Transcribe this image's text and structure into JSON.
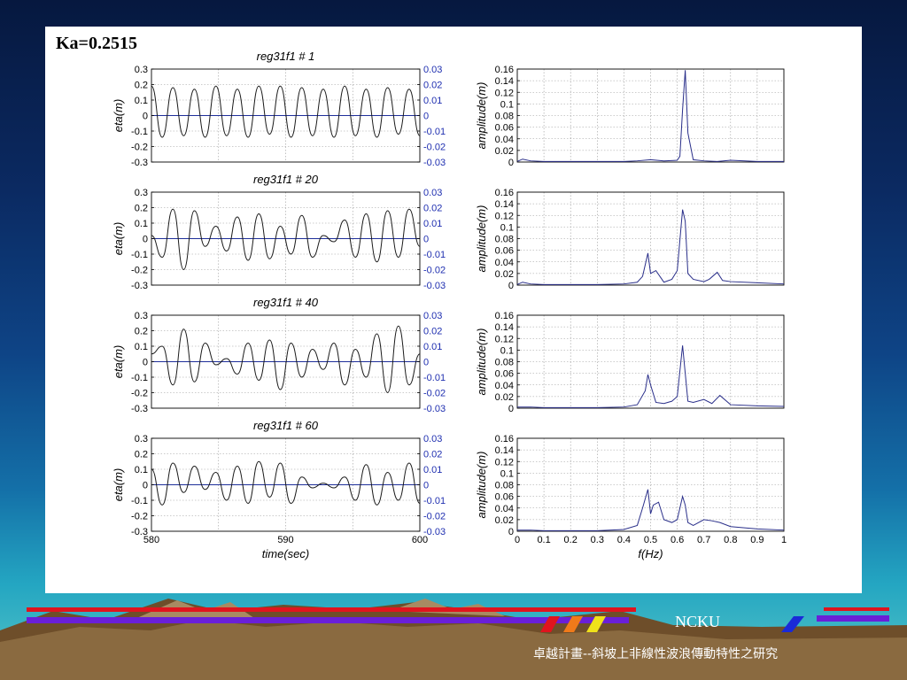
{
  "slide": {
    "title": "Ka=0.2515",
    "footer_mark": "NCKU",
    "footer_caption": "卓越計畫--斜坡上非線性波浪傳動特性之研究"
  },
  "colors": {
    "line": "#1a1a1a",
    "zero_line": "#1f2f9a",
    "right_axis_text": "#1f2fb0",
    "spectrum_line": "#2a2f8a"
  },
  "chart_data": [
    {
      "type": "line",
      "title": "reg31f1 # 1",
      "xlabel": "",
      "ylabel": "eta(m)",
      "y2label": "",
      "xlim": [
        580,
        600
      ],
      "ylim": [
        -0.3,
        0.3
      ],
      "y2lim": [
        -0.03,
        0.03
      ],
      "yticks": [
        "-0.3",
        "-0.2",
        "-0.1",
        "0",
        "0.1",
        "0.2",
        "0.3"
      ],
      "y2ticks": [
        "-0.03",
        "-0.02",
        "-0.01",
        "0",
        "0.01",
        "0.02",
        "0.03"
      ],
      "xticks": [],
      "grid": true,
      "series": [
        {
          "x": [
            580,
            580.8,
            581.6,
            582.4,
            583.2,
            584,
            584.8,
            585.6,
            586.4,
            587.2,
            588,
            588.8,
            589.6,
            590.4,
            591.2,
            592,
            592.8,
            593.6,
            594.4,
            595.2,
            596,
            596.8,
            597.6,
            598.4,
            599.2,
            600
          ],
          "y": [
            0.19,
            -0.14,
            0.18,
            -0.13,
            0.17,
            -0.14,
            0.19,
            -0.13,
            0.17,
            -0.14,
            0.19,
            -0.12,
            0.19,
            -0.14,
            0.18,
            -0.13,
            0.17,
            -0.14,
            0.19,
            -0.13,
            0.17,
            -0.14,
            0.18,
            -0.12,
            0.17,
            -0.13
          ]
        }
      ]
    },
    {
      "type": "line",
      "title": "",
      "xlabel": "",
      "ylabel": "amplitude(m)",
      "xlim": [
        0,
        1
      ],
      "ylim": [
        0,
        0.16
      ],
      "yticks": [
        "0",
        "0.02",
        "0.04",
        "0.06",
        "0.08",
        "0.1",
        "0.12",
        "0.14",
        "0.16"
      ],
      "xticks": [],
      "grid": true,
      "series": [
        {
          "x": [
            0,
            0.02,
            0.05,
            0.1,
            0.2,
            0.3,
            0.4,
            0.45,
            0.5,
            0.55,
            0.6,
            0.61,
            0.62,
            0.63,
            0.64,
            0.66,
            0.7,
            0.75,
            0.8,
            0.9,
            1.0
          ],
          "y": [
            0.001,
            0.005,
            0.002,
            0.001,
            0.001,
            0.001,
            0.001,
            0.002,
            0.004,
            0.002,
            0.003,
            0.01,
            0.09,
            0.158,
            0.05,
            0.004,
            0.002,
            0.001,
            0.003,
            0.001,
            0.001
          ]
        }
      ]
    },
    {
      "type": "line",
      "title": "reg31f1 # 20",
      "xlabel": "",
      "ylabel": "eta(m)",
      "y2label": "",
      "xlim": [
        580,
        600
      ],
      "ylim": [
        -0.3,
        0.3
      ],
      "y2lim": [
        -0.03,
        0.03
      ],
      "yticks": [
        "-0.3",
        "-0.2",
        "-0.1",
        "0",
        "0.1",
        "0.2",
        "0.3"
      ],
      "y2ticks": [
        "-0.03",
        "-0.02",
        "-0.01",
        "0",
        "0.01",
        "0.02",
        "0.03"
      ],
      "xticks": [],
      "grid": true,
      "series": [
        {
          "x": [
            580,
            580.8,
            581.6,
            582.4,
            583.2,
            584,
            584.8,
            585.6,
            586.4,
            587.2,
            588,
            588.8,
            589.6,
            590.4,
            591.2,
            592,
            592.8,
            593.6,
            594.4,
            595.2,
            596,
            596.8,
            597.6,
            598.4,
            599.2,
            600
          ],
          "y": [
            0.02,
            -0.12,
            0.19,
            -0.2,
            0.18,
            -0.05,
            0.08,
            -0.08,
            0.14,
            -0.14,
            0.16,
            -0.13,
            0.08,
            -0.1,
            0.15,
            -0.12,
            0.02,
            -0.02,
            0.12,
            -0.12,
            0.16,
            -0.15,
            0.18,
            -0.12,
            0.19,
            -0.05
          ]
        }
      ]
    },
    {
      "type": "line",
      "title": "",
      "xlabel": "",
      "ylabel": "amplitude(m)",
      "xlim": [
        0,
        1
      ],
      "ylim": [
        0,
        0.16
      ],
      "yticks": [
        "0",
        "0.02",
        "0.04",
        "0.06",
        "0.08",
        "0.1",
        "0.12",
        "0.14",
        "0.16"
      ],
      "xticks": [],
      "grid": true,
      "series": [
        {
          "x": [
            0,
            0.02,
            0.05,
            0.1,
            0.2,
            0.3,
            0.4,
            0.45,
            0.47,
            0.49,
            0.5,
            0.52,
            0.55,
            0.58,
            0.6,
            0.62,
            0.63,
            0.64,
            0.66,
            0.7,
            0.72,
            0.75,
            0.77,
            0.8,
            0.9,
            1.0
          ],
          "y": [
            0.001,
            0.005,
            0.002,
            0.001,
            0.001,
            0.001,
            0.002,
            0.005,
            0.015,
            0.055,
            0.02,
            0.025,
            0.005,
            0.01,
            0.025,
            0.13,
            0.11,
            0.02,
            0.01,
            0.006,
            0.01,
            0.022,
            0.008,
            0.006,
            0.004,
            0.002
          ]
        }
      ]
    },
    {
      "type": "line",
      "title": "reg31f1 # 40",
      "xlabel": "",
      "ylabel": "eta(m)",
      "y2label": "",
      "xlim": [
        580,
        600
      ],
      "ylim": [
        -0.3,
        0.3
      ],
      "y2lim": [
        -0.03,
        0.03
      ],
      "yticks": [
        "-0.3",
        "-0.2",
        "-0.1",
        "0",
        "0.1",
        "0.2",
        "0.3"
      ],
      "y2ticks": [
        "-0.03",
        "-0.02",
        "-0.01",
        "0",
        "0.01",
        "0.02",
        "0.03"
      ],
      "xticks": [],
      "grid": true,
      "series": [
        {
          "x": [
            580,
            580.8,
            581.6,
            582.4,
            583.2,
            584,
            584.8,
            585.6,
            586.4,
            587.2,
            588,
            588.8,
            589.6,
            590.4,
            591.2,
            592,
            592.8,
            593.6,
            594.4,
            595.2,
            596,
            596.8,
            597.6,
            598.4,
            599.2,
            600
          ],
          "y": [
            0.05,
            0.1,
            -0.15,
            0.21,
            -0.13,
            0.12,
            -0.02,
            0.02,
            -0.08,
            0.12,
            -0.12,
            0.14,
            -0.18,
            0.12,
            -0.1,
            0.08,
            -0.05,
            0.12,
            -0.15,
            0.08,
            -0.1,
            0.18,
            -0.2,
            0.23,
            -0.15,
            0.05
          ]
        }
      ]
    },
    {
      "type": "line",
      "title": "",
      "xlabel": "",
      "ylabel": "amplitude(m)",
      "xlim": [
        0,
        1
      ],
      "ylim": [
        0,
        0.16
      ],
      "yticks": [
        "0",
        "0.02",
        "0.04",
        "0.06",
        "0.08",
        "0.1",
        "0.12",
        "0.14",
        "0.16"
      ],
      "xticks": [],
      "grid": true,
      "series": [
        {
          "x": [
            0,
            0.05,
            0.1,
            0.2,
            0.3,
            0.4,
            0.45,
            0.48,
            0.49,
            0.5,
            0.52,
            0.55,
            0.58,
            0.6,
            0.62,
            0.63,
            0.64,
            0.66,
            0.7,
            0.73,
            0.76,
            0.8,
            0.9,
            1.0
          ],
          "y": [
            0.002,
            0.002,
            0.001,
            0.001,
            0.001,
            0.002,
            0.006,
            0.03,
            0.058,
            0.04,
            0.01,
            0.008,
            0.012,
            0.02,
            0.108,
            0.06,
            0.012,
            0.01,
            0.015,
            0.008,
            0.022,
            0.006,
            0.004,
            0.003
          ]
        }
      ]
    },
    {
      "type": "line",
      "title": "reg31f1 # 60",
      "xlabel": "time(sec)",
      "ylabel": "eta(m)",
      "y2label": "",
      "xlim": [
        580,
        600
      ],
      "ylim": [
        -0.3,
        0.3
      ],
      "y2lim": [
        -0.03,
        0.03
      ],
      "yticks": [
        "-0.3",
        "-0.2",
        "-0.1",
        "0",
        "0.1",
        "0.2",
        "0.3"
      ],
      "y2ticks": [
        "-0.03",
        "-0.02",
        "-0.01",
        "0",
        "0.01",
        "0.02",
        "0.03"
      ],
      "xticks": [
        "580",
        "590",
        "600"
      ],
      "grid": true,
      "series": [
        {
          "x": [
            580,
            580.8,
            581.6,
            582.4,
            583.2,
            584,
            584.8,
            585.6,
            586.4,
            587.2,
            588,
            588.8,
            589.6,
            590.4,
            591.2,
            592,
            592.8,
            593.6,
            594.4,
            595.2,
            596,
            596.8,
            597.6,
            598.4,
            599.2,
            600
          ],
          "y": [
            0.1,
            -0.13,
            0.14,
            -0.05,
            0.12,
            -0.03,
            0.08,
            -0.1,
            0.12,
            -0.12,
            0.15,
            -0.08,
            0.14,
            -0.12,
            0.05,
            -0.02,
            0.01,
            -0.02,
            0.05,
            -0.1,
            0.13,
            -0.13,
            0.08,
            -0.1,
            0.14,
            -0.12
          ]
        }
      ]
    },
    {
      "type": "line",
      "title": "",
      "xlabel": "f(Hz)",
      "ylabel": "amplitude(m)",
      "xlim": [
        0,
        1
      ],
      "ylim": [
        0,
        0.16
      ],
      "yticks": [
        "0",
        "0.02",
        "0.04",
        "0.06",
        "0.08",
        "0.1",
        "0.12",
        "0.14",
        "0.16"
      ],
      "xticks": [
        "0",
        "0.1",
        "0.2",
        "0.3",
        "0.4",
        "0.5",
        "0.6",
        "0.7",
        "0.8",
        "0.9",
        "1"
      ],
      "grid": true,
      "series": [
        {
          "x": [
            0,
            0.05,
            0.1,
            0.2,
            0.3,
            0.4,
            0.45,
            0.47,
            0.49,
            0.5,
            0.51,
            0.53,
            0.55,
            0.58,
            0.6,
            0.62,
            0.63,
            0.64,
            0.66,
            0.7,
            0.73,
            0.76,
            0.8,
            0.9,
            1.0
          ],
          "y": [
            0.002,
            0.002,
            0.001,
            0.001,
            0.001,
            0.003,
            0.01,
            0.04,
            0.072,
            0.03,
            0.045,
            0.05,
            0.02,
            0.015,
            0.02,
            0.06,
            0.045,
            0.015,
            0.01,
            0.02,
            0.018,
            0.015,
            0.008,
            0.004,
            0.002
          ]
        }
      ]
    }
  ]
}
